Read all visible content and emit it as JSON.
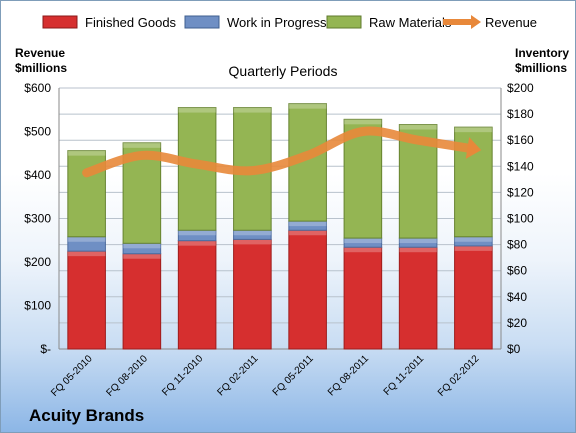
{
  "company_label": "Acuity Brands",
  "chart_data": {
    "type": "bar",
    "title": "Quarterly Periods",
    "ylabel_left": "Revenue\n$millions",
    "ylabel_right": "Inventory\n$millions",
    "legend_position": "top",
    "grid": true,
    "categories": [
      "FQ 05-2010",
      "FQ 08-2010",
      "FQ 11-2010",
      "FQ 02-2011",
      "FQ 05-2011",
      "FQ 08-2011",
      "FQ 11-2011",
      "FQ 02-2012"
    ],
    "left_axis": {
      "range": [
        0,
        600
      ],
      "ticks": [
        "$-",
        "$100",
        "$200",
        "$300",
        "$400",
        "$500",
        "$600"
      ]
    },
    "right_axis": {
      "range": [
        0,
        200
      ],
      "ticks": [
        "$0",
        "$20",
        "$40",
        "$60",
        "$80",
        "$100",
        "$120",
        "$140",
        "$160",
        "$180",
        "$200"
      ]
    },
    "series": [
      {
        "name": "Finished Goods",
        "type": "stacked-bar",
        "axis": "right",
        "color": "#d62f2f",
        "values": [
          75,
          73,
          83,
          84,
          91,
          78,
          78,
          79
        ]
      },
      {
        "name": "Work in Progress",
        "type": "stacked-bar",
        "axis": "right",
        "color": "#6f8fc4",
        "values": [
          11,
          8,
          8,
          7,
          7,
          7,
          7,
          7
        ]
      },
      {
        "name": "Raw Materials",
        "type": "stacked-bar",
        "axis": "right",
        "color": "#94b553",
        "values": [
          66,
          77,
          94,
          94,
          90,
          91,
          87,
          84
        ]
      },
      {
        "name": "Revenue",
        "type": "line",
        "axis": "left",
        "color": "#e8883a",
        "values": [
          405,
          445,
          425,
          410,
          445,
          500,
          480,
          460
        ]
      }
    ]
  }
}
